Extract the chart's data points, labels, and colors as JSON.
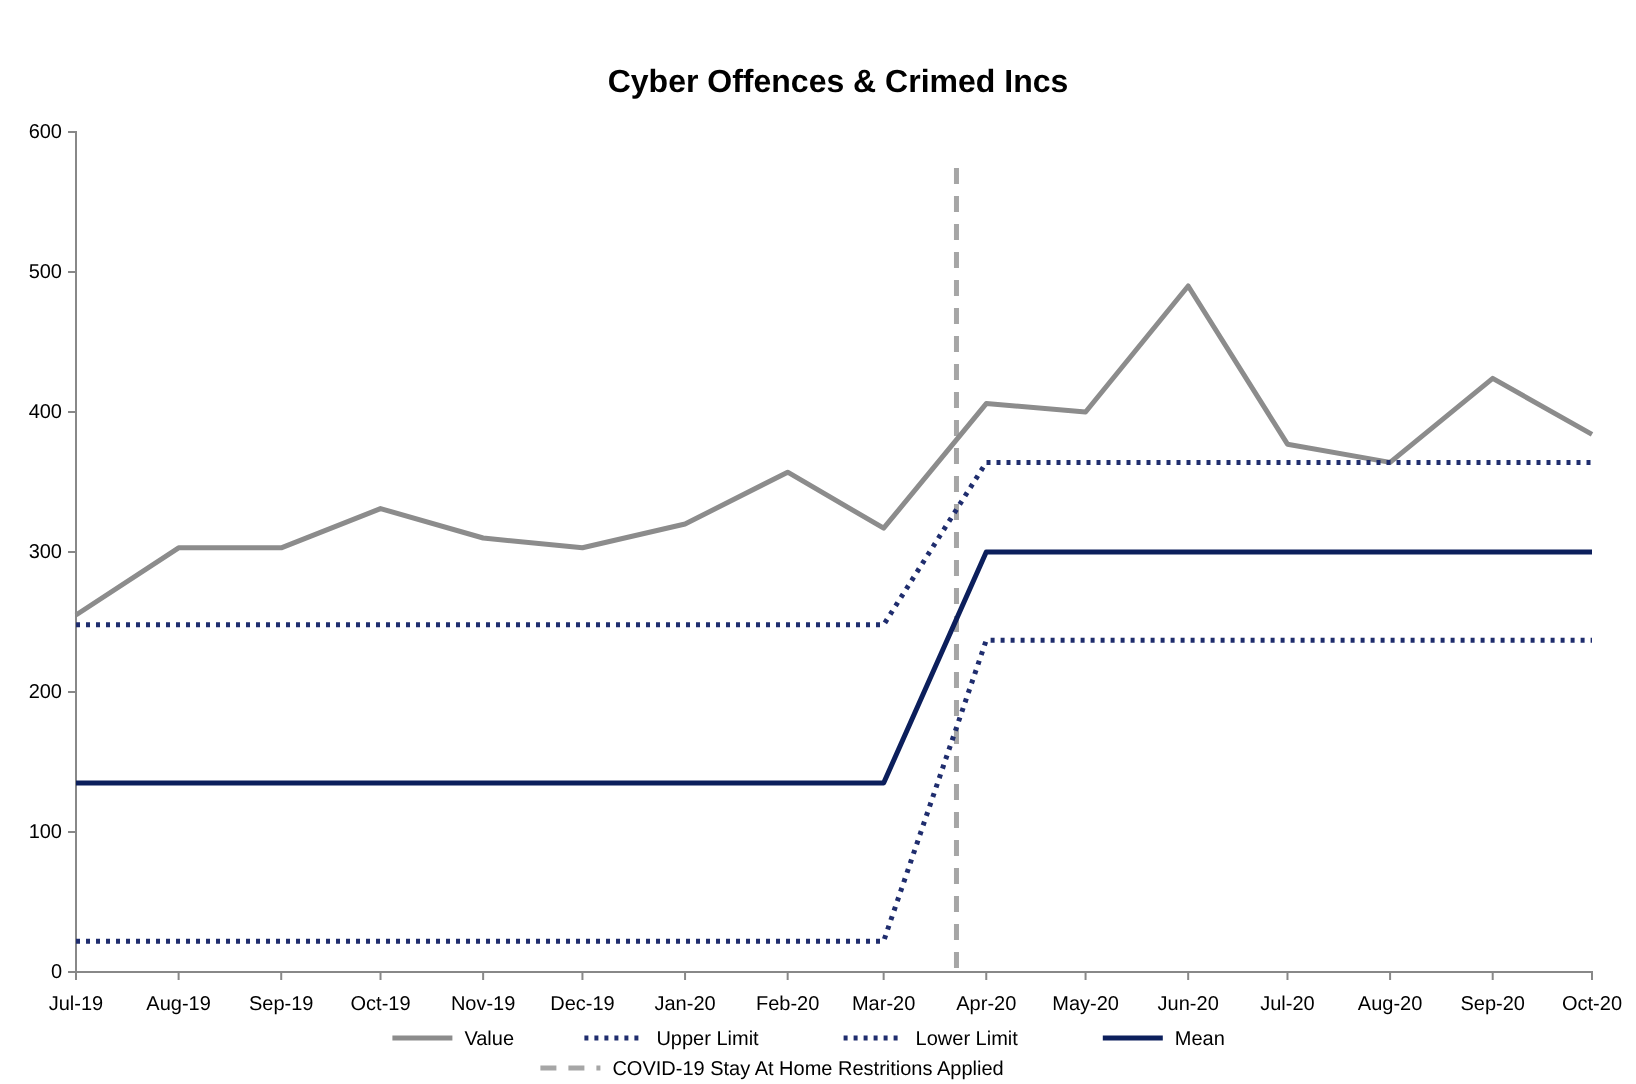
{
  "chart_data": {
    "type": "line",
    "title": "Cyber Offences & Crimed Incs",
    "x": [
      "2019-07",
      "2019-08",
      "2019-09",
      "2019-10",
      "2019-11",
      "2019-12",
      "2020-01",
      "2020-02",
      "2020-03",
      "2020-04",
      "2020-05",
      "2020-06",
      "2020-07",
      "2020-08",
      "2020-09",
      "2020-10"
    ],
    "series": [
      {
        "name": "Value",
        "color": "#8c8c8c",
        "line_style": "solid",
        "values": [
          255,
          303,
          303,
          331,
          310,
          303,
          320,
          357,
          317,
          406,
          400,
          490,
          377,
          364,
          424,
          384
        ]
      },
      {
        "name": "Upper Limit",
        "color": "#1f2d6e",
        "line_style": "dotted",
        "values": [
          248,
          248,
          248,
          248,
          248,
          248,
          248,
          248,
          248,
          364,
          364,
          364,
          364,
          364,
          364,
          364
        ]
      },
      {
        "name": "Lower Limit",
        "color": "#1f2d6e",
        "line_style": "dotted",
        "values": [
          22,
          22,
          22,
          22,
          22,
          22,
          22,
          22,
          22,
          237,
          237,
          237,
          237,
          237,
          237,
          237
        ]
      },
      {
        "name": "Mean",
        "color": "#0c1f5c",
        "line_style": "solid",
        "values": [
          135,
          135,
          135,
          135,
          135,
          135,
          135,
          135,
          135,
          300,
          300,
          300,
          300,
          300,
          300,
          300
        ]
      }
    ],
    "ref_lines": [
      {
        "axis": "x",
        "value": "2020-03-23",
        "label": "COVID-19 Stay At Home Restritions Applied",
        "color": "#a6a6a6",
        "line_style": "dashed"
      }
    ],
    "xlim": [
      "2019-07",
      "2020-10"
    ],
    "xticks": [
      {
        "value": "2019-07",
        "label": "Jul-19"
      },
      {
        "value": "2019-08",
        "label": "Aug-19"
      },
      {
        "value": "2019-09",
        "label": "Sep-19"
      },
      {
        "value": "2019-10",
        "label": "Oct-19"
      },
      {
        "value": "2019-11",
        "label": "Nov-19"
      },
      {
        "value": "2019-12",
        "label": "Dec-19"
      },
      {
        "value": "2020-01",
        "label": "Jan-20"
      },
      {
        "value": "2020-02",
        "label": "Feb-20"
      },
      {
        "value": "2020-03",
        "label": "Mar-20"
      },
      {
        "value": "2020-04",
        "label": "Apr-20"
      },
      {
        "value": "2020-05",
        "label": "May-20"
      },
      {
        "value": "2020-06",
        "label": "Jun-20"
      },
      {
        "value": "2020-07",
        "label": "Jul-20"
      },
      {
        "value": "2020-08",
        "label": "Aug-20"
      },
      {
        "value": "2020-09",
        "label": "Sep-20"
      },
      {
        "value": "2020-10",
        "label": "Oct-20"
      }
    ],
    "ylim": [
      0,
      600
    ],
    "yticks": [
      0,
      100,
      200,
      300,
      400,
      500,
      600
    ],
    "grid": false,
    "legend": "bottom",
    "marker": "none"
  }
}
